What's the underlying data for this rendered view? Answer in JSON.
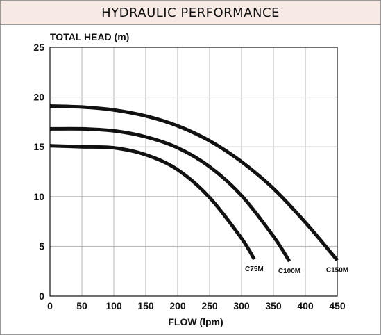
{
  "header": {
    "title": "HYDRAULIC PERFORMANCE"
  },
  "chart_data": {
    "type": "line",
    "title": "HYDRAULIC PERFORMANCE",
    "ylabel": "TOTAL HEAD (m)",
    "xlabel": "FLOW (lpm)",
    "xlim": [
      0,
      450
    ],
    "ylim": [
      0,
      25
    ],
    "xticks": [
      0,
      50,
      100,
      150,
      200,
      250,
      300,
      350,
      400,
      450
    ],
    "yticks": [
      0,
      5,
      10,
      15,
      20,
      25
    ],
    "grid": true,
    "line_color": "#111111",
    "series": [
      {
        "name": "C75M",
        "x": [
          0,
          50,
          100,
          150,
          200,
          250,
          300,
          320
        ],
        "y": [
          15.1,
          15.0,
          14.9,
          14.2,
          12.7,
          9.9,
          5.8,
          3.7
        ]
      },
      {
        "name": "C100M",
        "x": [
          0,
          50,
          100,
          150,
          200,
          250,
          300,
          350,
          375
        ],
        "y": [
          16.8,
          16.8,
          16.6,
          16.0,
          14.9,
          13.0,
          10.1,
          6.0,
          3.5
        ]
      },
      {
        "name": "C150M",
        "x": [
          0,
          50,
          100,
          150,
          200,
          250,
          300,
          350,
          400,
          450
        ],
        "y": [
          19.1,
          19.0,
          18.7,
          18.1,
          17.1,
          15.6,
          13.5,
          10.8,
          7.4,
          3.6
        ]
      }
    ]
  }
}
